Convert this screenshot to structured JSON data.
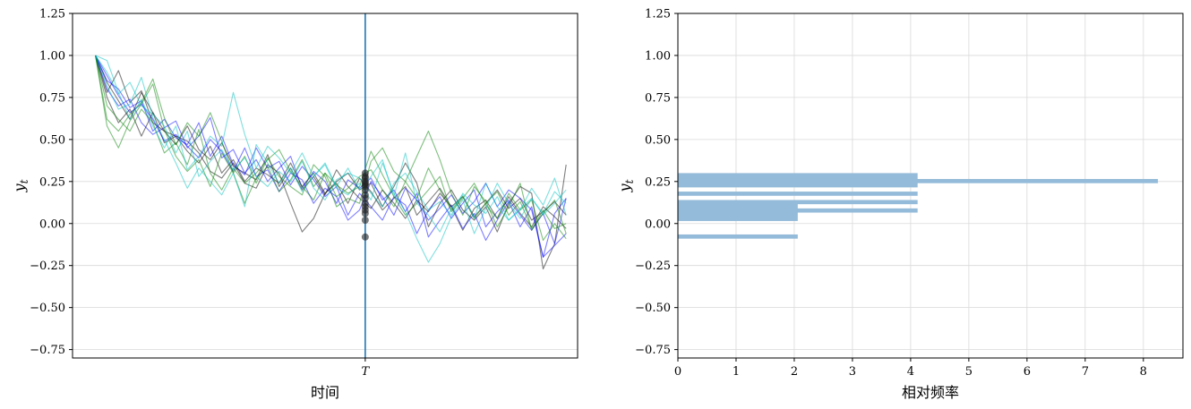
{
  "chart_data": [
    {
      "type": "line",
      "xlabel": "时间",
      "ylabel": "y_t",
      "ylabel_main": "y",
      "ylabel_sub": "t",
      "ylim": [
        -0.8,
        1.25
      ],
      "yticks": [
        -0.75,
        -0.5,
        -0.25,
        0.0,
        0.25,
        0.5,
        0.75,
        1.0,
        1.25
      ],
      "ytick_labels": [
        "−0.75",
        "−0.50",
        "−0.25",
        "0.00",
        "0.25",
        "0.50",
        "0.75",
        "1.00",
        "1.25"
      ],
      "xlim": [
        -2,
        42
      ],
      "xticks": [
        {
          "x": 23.5,
          "label": "T"
        }
      ],
      "vline": {
        "x": 23.5,
        "color": "#1f77b4"
      },
      "grid": {
        "y": true,
        "x": false
      },
      "series": [
        {
          "color": "#000000",
          "values": [
            1.0,
            0.78,
            0.91,
            0.72,
            0.79,
            0.6,
            0.55,
            0.52,
            0.49,
            0.42,
            0.31,
            0.27,
            0.36,
            0.24,
            0.21,
            0.35,
            0.3,
            0.12,
            -0.05,
            0.03,
            0.18,
            0.25,
            0.3,
            0.2,
            0.24,
            0.1,
            0.22,
            0.36,
            0.24,
            -0.02,
            0.12,
            0.2,
            0.08,
            0.02,
            0.1,
            -0.05,
            0.12,
            0.22,
            0.18,
            -0.27,
            -0.12,
            0.35
          ]
        },
        {
          "color": "#000000",
          "values": [
            1.0,
            0.84,
            0.73,
            0.62,
            0.78,
            0.66,
            0.55,
            0.47,
            0.58,
            0.44,
            0.38,
            0.48,
            0.34,
            0.3,
            0.26,
            0.41,
            0.22,
            0.33,
            0.2,
            0.28,
            0.17,
            0.32,
            0.22,
            0.15,
            0.09,
            0.2,
            0.12,
            0.03,
            0.14,
            0.07,
            0.18,
            0.1,
            -0.04,
            0.09,
            0.14,
            0.03,
            0.16,
            0.06,
            -0.02,
            0.1,
            0.04,
            -0.03
          ]
        },
        {
          "color": "#000000",
          "values": [
            1.0,
            0.75,
            0.6,
            0.68,
            0.52,
            0.66,
            0.48,
            0.52,
            0.43,
            0.36,
            0.46,
            0.3,
            0.38,
            0.25,
            0.33,
            0.29,
            0.24,
            0.36,
            0.22,
            0.3,
            0.18,
            0.24,
            0.12,
            0.27,
            0.19,
            0.08,
            0.15,
            0.22,
            0.05,
            0.13,
            0.21,
            0.1,
            0.16,
            0.04,
            0.12,
            0.2,
            0.09,
            0.15,
            0.02,
            0.07,
            0.13,
            0.05
          ]
        },
        {
          "color": "#0000ff",
          "values": [
            1.0,
            0.85,
            0.8,
            0.69,
            0.73,
            0.55,
            0.62,
            0.51,
            0.47,
            0.6,
            0.4,
            0.52,
            0.35,
            0.29,
            0.45,
            0.33,
            0.37,
            0.23,
            0.34,
            0.26,
            0.16,
            0.22,
            0.05,
            0.18,
            0.1,
            0.02,
            0.16,
            0.11,
            -0.06,
            0.08,
            0.16,
            0.03,
            0.12,
            0.2,
            -0.02,
            0.07,
            0.14,
            0.05,
            -0.04,
            0.06,
            -0.12,
            0.15
          ]
        },
        {
          "color": "#0000ff",
          "values": [
            1.0,
            0.8,
            0.7,
            0.74,
            0.6,
            0.53,
            0.57,
            0.61,
            0.45,
            0.52,
            0.63,
            0.39,
            0.44,
            0.3,
            0.38,
            0.25,
            0.33,
            0.4,
            0.21,
            0.31,
            0.25,
            0.12,
            0.26,
            0.21,
            0.27,
            0.14,
            0.2,
            0.07,
            0.18,
            -0.08,
            0.02,
            0.11,
            -0.03,
            0.06,
            -0.1,
            0.02,
            0.13,
            -0.02,
            0.1,
            -0.2,
            -0.13,
            -0.06
          ]
        },
        {
          "color": "#0000ff",
          "values": [
            1.0,
            0.88,
            0.76,
            0.66,
            0.71,
            0.62,
            0.49,
            0.53,
            0.46,
            0.39,
            0.5,
            0.43,
            0.31,
            0.45,
            0.28,
            0.32,
            0.19,
            0.3,
            0.26,
            0.12,
            0.21,
            0.16,
            0.02,
            0.08,
            0.25,
            0.16,
            0.05,
            0.21,
            0.14,
            0.02,
            0.09,
            0.17,
            0.06,
            0.13,
            0.24,
            0.1,
            0.2,
            0.15,
            0.08,
            -0.2,
            0.06,
            0.15
          ]
        },
        {
          "color": "#008000",
          "values": [
            1.0,
            0.62,
            0.55,
            0.65,
            0.72,
            0.86,
            0.63,
            0.47,
            0.6,
            0.52,
            0.66,
            0.49,
            0.3,
            0.4,
            0.24,
            0.39,
            0.28,
            0.22,
            0.17,
            0.35,
            0.28,
            0.1,
            0.15,
            0.12,
            0.37,
            0.45,
            0.31,
            0.25,
            0.4,
            0.55,
            0.38,
            0.18,
            0.05,
            0.22,
            0.13,
            -0.02,
            0.1,
            0.24,
            -0.04,
            0.08,
            -0.03,
            0.0
          ]
        },
        {
          "color": "#008000",
          "values": [
            1.0,
            0.58,
            0.45,
            0.61,
            0.71,
            0.83,
            0.56,
            0.4,
            0.31,
            0.38,
            0.22,
            0.42,
            0.3,
            0.12,
            0.27,
            0.34,
            0.19,
            0.26,
            0.38,
            0.22,
            0.3,
            0.16,
            0.21,
            0.28,
            0.32,
            0.2,
            0.1,
            0.25,
            0.15,
            0.33,
            0.2,
            0.08,
            0.16,
            0.03,
            0.12,
            0.19,
            0.05,
            0.13,
            -0.03,
            0.06,
            0.14,
            -0.06
          ]
        },
        {
          "color": "#008000",
          "values": [
            1.0,
            0.7,
            0.62,
            0.55,
            0.68,
            0.6,
            0.42,
            0.48,
            0.35,
            0.56,
            0.3,
            0.2,
            0.33,
            0.24,
            0.3,
            0.38,
            0.44,
            0.31,
            0.22,
            0.14,
            0.3,
            0.23,
            0.18,
            0.22,
            0.43,
            0.29,
            0.16,
            0.05,
            0.12,
            0.2,
            0.28,
            0.07,
            0.15,
            0.24,
            0.11,
            0.03,
            0.18,
            0.08,
            0.14,
            -0.1,
            0.0,
            -0.09
          ]
        },
        {
          "color": "#00bfbf",
          "values": [
            1.0,
            0.97,
            0.78,
            0.62,
            0.74,
            0.58,
            0.45,
            0.58,
            0.32,
            0.4,
            0.52,
            0.46,
            0.78,
            0.53,
            0.33,
            0.46,
            0.39,
            0.3,
            0.42,
            0.28,
            0.36,
            0.22,
            0.33,
            0.2,
            0.28,
            0.38,
            0.16,
            0.42,
            0.12,
            0.05,
            -0.05,
            0.09,
            0.17,
            0.03,
            0.24,
            0.1,
            0.02,
            0.08,
            0.21,
            0.11,
            0.27,
            0.05
          ]
        },
        {
          "color": "#00bfbf",
          "values": [
            1.0,
            0.82,
            0.68,
            0.71,
            0.87,
            0.63,
            0.5,
            0.36,
            0.21,
            0.33,
            0.25,
            0.17,
            0.3,
            0.1,
            0.47,
            0.36,
            0.24,
            0.33,
            0.19,
            0.28,
            0.35,
            0.21,
            0.17,
            0.24,
            0.14,
            0.36,
            0.18,
            0.07,
            -0.09,
            -0.23,
            -0.12,
            0.04,
            0.14,
            -0.06,
            0.09,
            0.24,
            0.12,
            0.03,
            0.15,
            0.06,
            0.19,
            0.12
          ]
        },
        {
          "color": "#00bfbf",
          "values": [
            1.0,
            0.9,
            0.77,
            0.84,
            0.7,
            0.65,
            0.58,
            0.42,
            0.55,
            0.28,
            0.37,
            0.44,
            0.32,
            0.39,
            0.28,
            0.22,
            0.31,
            0.25,
            0.37,
            0.21,
            0.14,
            0.26,
            0.3,
            0.27,
            0.18,
            0.1,
            0.24,
            0.3,
            0.19,
            0.08,
            0.13,
            0.05,
            0.18,
            0.11,
            0.06,
            0.16,
            0.02,
            0.09,
            0.15,
            0.05,
            0.12,
            0.2
          ]
        }
      ],
      "endpoints": [
        0.3,
        0.28,
        0.27,
        0.25,
        0.24,
        0.23,
        0.22,
        0.2,
        0.17,
        0.15,
        0.12,
        0.1,
        0.08,
        0.06,
        0.02,
        -0.08
      ]
    },
    {
      "type": "bar",
      "orientation": "horizontal",
      "xlabel": "相对频率",
      "ylabel": "y_t",
      "ylabel_main": "y",
      "ylabel_sub": "t",
      "xlim": [
        0,
        8.68
      ],
      "xticks": [
        0,
        1,
        2,
        3,
        4,
        5,
        6,
        7,
        8
      ],
      "ylim": [
        -0.8,
        1.25
      ],
      "yticks": [
        -0.75,
        -0.5,
        -0.25,
        0.0,
        0.25,
        0.5,
        0.75,
        1.0,
        1.25
      ],
      "ytick_labels": [
        "−0.75",
        "−0.50",
        "−0.25",
        "0.00",
        "0.25",
        "0.50",
        "0.75",
        "1.00",
        "1.25"
      ],
      "grid": {
        "x": true,
        "y": true
      },
      "color": "#94bbd9",
      "bars": [
        {
          "y0": 0.215,
          "y1": 0.3,
          "value": 4.12
        },
        {
          "y0": 0.24,
          "y1": 0.265,
          "value": 8.25
        },
        {
          "y0": 0.165,
          "y1": 0.19,
          "value": 4.12
        },
        {
          "y0": 0.115,
          "y1": 0.14,
          "value": 4.12
        },
        {
          "y0": 0.065,
          "y1": 0.09,
          "value": 4.12
        },
        {
          "y0": 0.015,
          "y1": 0.125,
          "value": 2.06
        },
        {
          "y0": -0.09,
          "y1": -0.065,
          "value": 2.06
        }
      ]
    }
  ]
}
